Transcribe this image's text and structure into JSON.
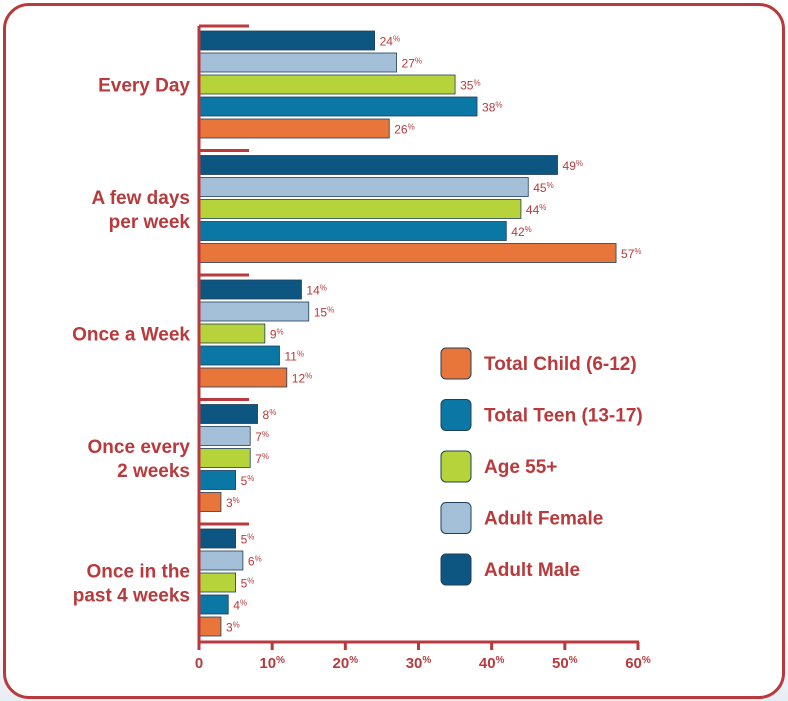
{
  "chart_data": {
    "type": "bar",
    "orientation": "horizontal",
    "categories": [
      "Every Day",
      "A few days per week",
      "Once a Week",
      "Once every 2 weeks",
      "Once in the past 4 weeks"
    ],
    "category_lines": [
      [
        "Every Day"
      ],
      [
        "A few days",
        "per week"
      ],
      [
        "Once a Week"
      ],
      [
        "Once every",
        "2 weeks"
      ],
      [
        "Once in the",
        "past 4 weeks"
      ]
    ],
    "series": [
      {
        "name": "Adult Male",
        "color": "#0d5682",
        "values": [
          24,
          49,
          14,
          8,
          5
        ]
      },
      {
        "name": "Adult Female",
        "color": "#a3c0d8",
        "values": [
          27,
          45,
          15,
          7,
          6
        ]
      },
      {
        "name": "Age 55+",
        "color": "#b7d33c",
        "values": [
          35,
          44,
          9,
          7,
          5
        ]
      },
      {
        "name": "Total Teen (13-17)",
        "color": "#0a77a5",
        "values": [
          38,
          42,
          11,
          5,
          4
        ]
      },
      {
        "name": "Total Child (6-12)",
        "color": "#e8763a",
        "values": [
          26,
          57,
          12,
          3,
          3
        ]
      }
    ],
    "legend_order": [
      "Total Child (6-12)",
      "Total Teen (13-17)",
      "Age 55+",
      "Adult Female",
      "Adult Male"
    ],
    "legend_position": "right",
    "xlim": [
      0,
      60
    ],
    "x_ticks": [
      0,
      10,
      20,
      30,
      40,
      50,
      60
    ],
    "tick_suffix": "%",
    "value_suffix": "%",
    "axis_color": "#b83a3d",
    "text_color": "#b83a3d",
    "grid": false
  }
}
